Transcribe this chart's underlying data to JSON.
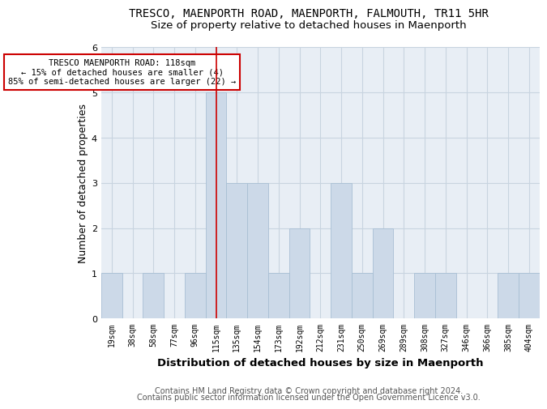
{
  "title": "TRESCO, MAENPORTH ROAD, MAENPORTH, FALMOUTH, TR11 5HR",
  "subtitle": "Size of property relative to detached houses in Maenporth",
  "xlabel": "Distribution of detached houses by size in Maenporth",
  "ylabel": "Number of detached properties",
  "categories": [
    "19sqm",
    "38sqm",
    "58sqm",
    "77sqm",
    "96sqm",
    "115sqm",
    "135sqm",
    "154sqm",
    "173sqm",
    "192sqm",
    "212sqm",
    "231sqm",
    "250sqm",
    "269sqm",
    "289sqm",
    "308sqm",
    "327sqm",
    "346sqm",
    "366sqm",
    "385sqm",
    "404sqm"
  ],
  "values": [
    1,
    0,
    1,
    0,
    1,
    5,
    3,
    3,
    1,
    2,
    0,
    3,
    1,
    2,
    0,
    1,
    1,
    0,
    0,
    1,
    1
  ],
  "bar_color": "#ccd9e8",
  "bar_edgecolor": "#a8bfd4",
  "redline_index": 5,
  "annotation_text": "TRESCO MAENPORTH ROAD: 118sqm\n← 15% of detached houses are smaller (4)\n85% of semi-detached houses are larger (22) →",
  "ylim": [
    0,
    6
  ],
  "yticks": [
    0,
    1,
    2,
    3,
    4,
    5,
    6
  ],
  "footer_line1": "Contains HM Land Registry data © Crown copyright and database right 2024.",
  "footer_line2": "Contains public sector information licensed under the Open Government Licence v3.0.",
  "bg_color": "#ffffff",
  "plot_bg_color": "#e8eef5",
  "grid_color": "#c8d4e0",
  "title_fontsize": 10,
  "subtitle_fontsize": 9.5,
  "axis_label_fontsize": 9,
  "tick_fontsize": 7,
  "footer_fontsize": 7,
  "annot_fontsize": 7.5
}
